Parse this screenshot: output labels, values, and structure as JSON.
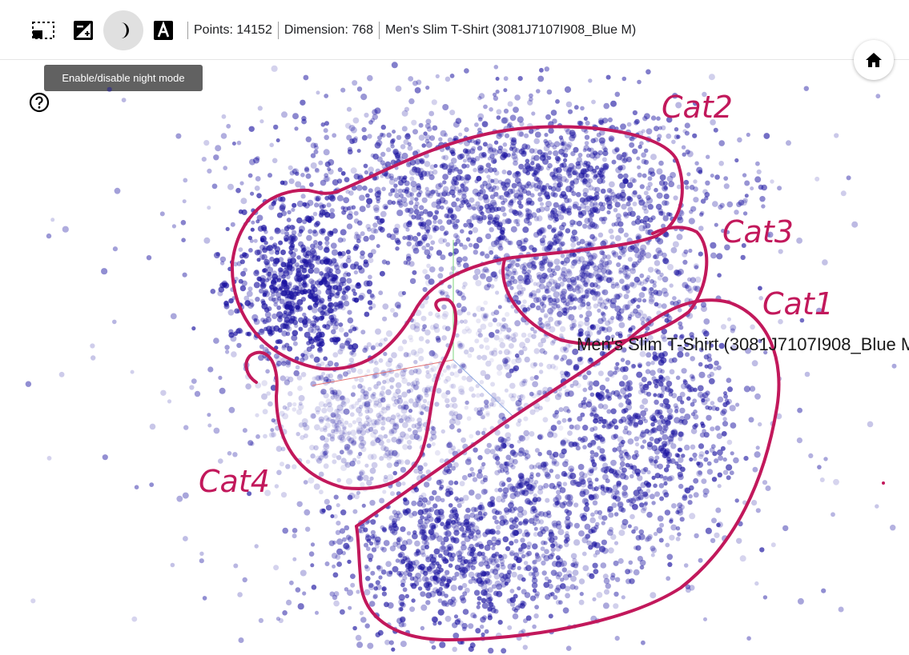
{
  "toolbar": {
    "buttons": [
      {
        "name": "selection-mode",
        "icon": "select-rectangle-icon",
        "active": false
      },
      {
        "name": "edit-label",
        "icon": "image-edit-icon",
        "active": false
      },
      {
        "name": "night-mode",
        "icon": "moon-icon",
        "active": true
      },
      {
        "name": "labels",
        "icon": "letter-a-icon",
        "active": false
      }
    ],
    "points_text": "Points: 14152",
    "dimension_text": "Dimension: 768",
    "selected_text": "Men's Slim T-Shirt (3081J7107I908_Blue M)"
  },
  "tooltip": {
    "text": "Enable/disable night mode"
  },
  "help": {
    "icon": "help-circle-icon"
  },
  "home": {
    "icon": "home-icon"
  },
  "plot": {
    "hover_label": "Men's Slim T-Shirt (3081J7107I908_Blue M)",
    "point_color": "#1a12a0",
    "annotation_color": "#c2185b",
    "annotations": [
      "Cat2",
      "Cat3",
      "Cat1",
      "Cat4"
    ]
  }
}
